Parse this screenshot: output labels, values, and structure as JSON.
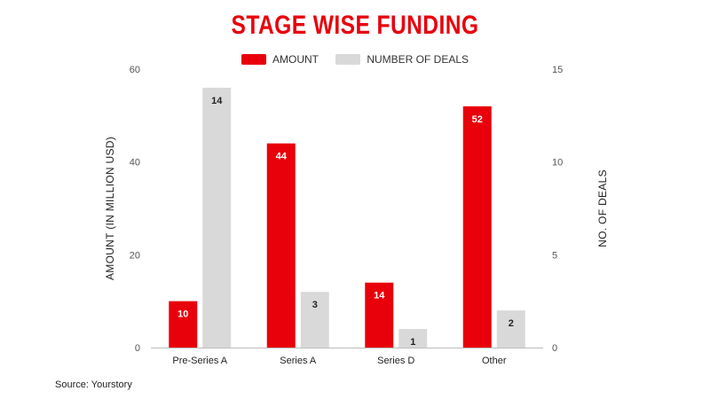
{
  "chart_data": {
    "type": "bar",
    "title": "STAGE WISE FUNDING",
    "categories": [
      "Pre-Series A",
      "Series A",
      "Series D",
      "Other"
    ],
    "series": [
      {
        "name": "AMOUNT",
        "axis": "left",
        "color": "#e8000b",
        "values": [
          10,
          44,
          14,
          52
        ],
        "label_color": "#ffffff"
      },
      {
        "name": "NUMBER OF DEALS",
        "axis": "right",
        "color": "#d9d9d9",
        "values": [
          14,
          3,
          1,
          2
        ],
        "label_color": "#222222"
      }
    ],
    "ylabel": "AMOUNT (IN MILLION USD)",
    "y2label": "NO. OF DEALS",
    "ylim": [
      0,
      60
    ],
    "y2lim": [
      0,
      15
    ],
    "yticks": [
      0,
      20,
      40,
      60
    ],
    "y2ticks": [
      0,
      5,
      10,
      15
    ],
    "grid": false,
    "legend_position": "top-center"
  },
  "source": "Source: Yourstory"
}
